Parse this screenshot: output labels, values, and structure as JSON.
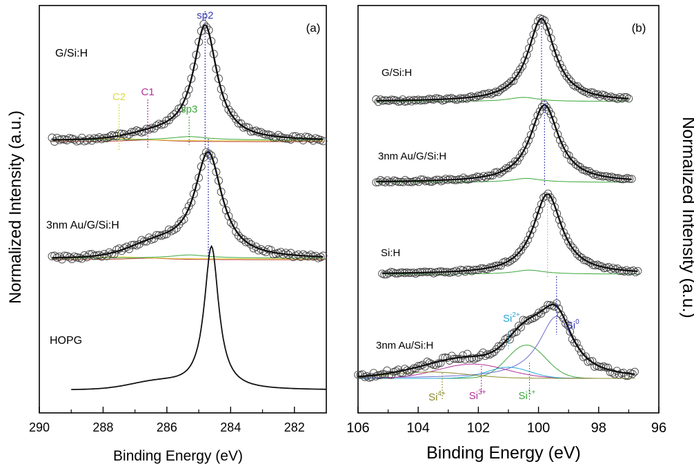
{
  "chart_data": [
    {
      "type": "line",
      "panel_label": "(a)",
      "xlabel": "Binding Energy (eV)",
      "ylabel": "Normalized Intensity (a.u.)",
      "xlim": [
        290,
        281
      ],
      "xticks": [
        290,
        288,
        286,
        284,
        282
      ],
      "annotations": [
        {
          "text": "sp2",
          "x": 284.8,
          "color": "#3b3bb3"
        },
        {
          "text": "C2",
          "x": 287.5,
          "color": "#d9d94a"
        },
        {
          "text": "C1",
          "x": 286.6,
          "color": "#b0309a"
        },
        {
          "text": "sp3",
          "x": 285.3,
          "color": "#3aa63a"
        }
      ],
      "series": [
        {
          "name": "G/Si:H",
          "peak_ev": 284.8,
          "fwhm_ev": 0.9,
          "fitted": true,
          "points": true
        },
        {
          "name": "3nm Au/G/Si:H",
          "peak_ev": 284.7,
          "fwhm_ev": 1.05,
          "fitted": true,
          "points": true
        },
        {
          "name": "HOPG",
          "peak_ev": 284.6,
          "fwhm_ev": 0.55,
          "fitted": false,
          "points": false
        }
      ]
    },
    {
      "type": "line",
      "panel_label": "(b)",
      "xlabel": "Binding Energy (eV)",
      "ylabel": "Normalized Intensity (a.u.)",
      "xlim": [
        106,
        96
      ],
      "xticks": [
        106,
        104,
        102,
        100,
        98,
        96
      ],
      "annotations": [
        {
          "text": "Si",
          "sup": "0",
          "x": 99.4,
          "color": "#3b3bb3"
        },
        {
          "text": "Si",
          "sup": "2+",
          "x": 101.0,
          "color": "#2aa6d6"
        },
        {
          "text": "Si",
          "sup": "4+",
          "x": 103.2,
          "color": "#8a8a2a"
        },
        {
          "text": "Si",
          "sup": "3+",
          "x": 101.9,
          "color": "#b0309a"
        },
        {
          "text": "Si",
          "sup": "1+",
          "x": 100.3,
          "color": "#3aa63a"
        }
      ],
      "series": [
        {
          "name": "G/Si:H",
          "peak_ev": 99.9,
          "fwhm_ev": 1.1
        },
        {
          "name": "3nm Au/G/Si:H",
          "peak_ev": 99.8,
          "fwhm_ev": 1.15
        },
        {
          "name": "Si:H",
          "peak_ev": 99.7,
          "fwhm_ev": 1.15
        },
        {
          "name": "3nm Au/Si:H",
          "peak_ev": 99.4,
          "fwhm_ev": 1.5
        }
      ]
    }
  ]
}
